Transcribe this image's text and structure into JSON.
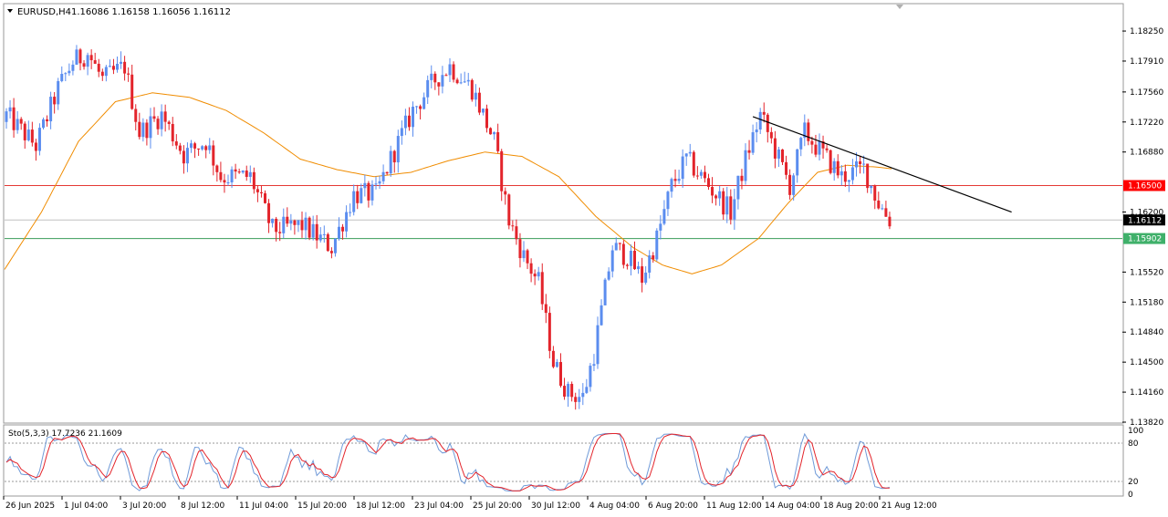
{
  "chart_data": {
    "type": "candlestick",
    "header": {
      "symbol_timeframe": "EURUSD,H4",
      "ohlc": "1.16086 1.16158 1.16056 1.16112"
    },
    "y_ticks": [
      "1.18250",
      "1.17910",
      "1.17560",
      "1.17220",
      "1.16880",
      "1.16200",
      "1.15520",
      "1.15180",
      "1.14840",
      "1.14500",
      "1.14160",
      "1.13820"
    ],
    "ylim": [
      1.1382,
      1.1855
    ],
    "x_ticks": [
      "26 Jun 2025",
      "1 Jul 04:00",
      "3 Jul 20:00",
      "8 Jul 12:00",
      "11 Jul 04:00",
      "15 Jul 20:00",
      "18 Jul 12:00",
      "23 Jul 04:00",
      "25 Jul 20:00",
      "30 Jul 12:00",
      "4 Aug 04:00",
      "6 Aug 20:00",
      "11 Aug 12:00",
      "14 Aug 04:00",
      "18 Aug 20:00",
      "21 Aug 12:00"
    ],
    "candle_count": 240,
    "close_anchors": [
      [
        0,
        1.173
      ],
      [
        8,
        1.1695
      ],
      [
        14,
        1.176
      ],
      [
        18,
        1.179
      ],
      [
        22,
        1.18
      ],
      [
        26,
        1.177
      ],
      [
        32,
        1.1785
      ],
      [
        36,
        1.171
      ],
      [
        42,
        1.173
      ],
      [
        48,
        1.1685
      ],
      [
        54,
        1.17
      ],
      [
        58,
        1.166
      ],
      [
        66,
        1.166
      ],
      [
        72,
        1.16
      ],
      [
        80,
        1.1605
      ],
      [
        88,
        1.158
      ],
      [
        94,
        1.164
      ],
      [
        100,
        1.164
      ],
      [
        104,
        1.168
      ],
      [
        110,
        1.1735
      ],
      [
        116,
        1.177
      ],
      [
        120,
        1.1785
      ],
      [
        126,
        1.176
      ],
      [
        132,
        1.17
      ],
      [
        136,
        1.161
      ],
      [
        140,
        1.157
      ],
      [
        144,
        1.154
      ],
      [
        148,
        1.145
      ],
      [
        152,
        1.1415
      ],
      [
        156,
        1.141
      ],
      [
        159,
        1.146
      ],
      [
        164,
        1.158
      ],
      [
        168,
        1.157
      ],
      [
        172,
        1.1545
      ],
      [
        176,
        1.159
      ],
      [
        180,
        1.165
      ],
      [
        184,
        1.168
      ],
      [
        190,
        1.165
      ],
      [
        196,
        1.162
      ],
      [
        200,
        1.168
      ],
      [
        204,
        1.173
      ],
      [
        208,
        1.169
      ],
      [
        212,
        1.165
      ],
      [
        216,
        1.171
      ],
      [
        222,
        1.168
      ],
      [
        226,
        1.166
      ],
      [
        232,
        1.167
      ],
      [
        236,
        1.163
      ],
      [
        239,
        1.1611
      ]
    ],
    "moving_average": {
      "color": "#f08c00",
      "anchors": [
        [
          0,
          1.1555
        ],
        [
          10,
          1.162
        ],
        [
          20,
          1.17
        ],
        [
          30,
          1.1745
        ],
        [
          40,
          1.1755
        ],
        [
          50,
          1.175
        ],
        [
          60,
          1.1735
        ],
        [
          70,
          1.171
        ],
        [
          80,
          1.168
        ],
        [
          90,
          1.1668
        ],
        [
          100,
          1.166
        ],
        [
          110,
          1.1665
        ],
        [
          120,
          1.1678
        ],
        [
          130,
          1.1688
        ],
        [
          140,
          1.1683
        ],
        [
          150,
          1.166
        ],
        [
          160,
          1.1615
        ],
        [
          170,
          1.158
        ],
        [
          178,
          1.156
        ],
        [
          186,
          1.155
        ],
        [
          194,
          1.156
        ],
        [
          204,
          1.159
        ],
        [
          212,
          1.163
        ],
        [
          220,
          1.1665
        ],
        [
          228,
          1.1673
        ],
        [
          236,
          1.1671
        ],
        [
          240,
          1.1669
        ]
      ]
    },
    "horizontal_lines": [
      {
        "price": 1.165,
        "color": "#e53935",
        "label": "1.16500",
        "badge_bg": "#ff0000",
        "badge_fg": "#ffffff"
      },
      {
        "price": 1.159,
        "color": "#3a9c5a",
        "label": "1.15902",
        "badge_bg": "#3fb06a",
        "badge_fg": "#ffffff"
      },
      {
        "price": 1.1611,
        "color": "#c0c0c0",
        "label": "1.16112",
        "badge_bg": "#000000",
        "badge_fg": "#ffffff"
      }
    ],
    "trendline": {
      "from": [
        202,
        1.1728
      ],
      "to": [
        272,
        1.162
      ],
      "color": "#000000"
    },
    "bull_color": "#5b8def",
    "bear_color": "#e3242b",
    "stochastic": {
      "label": "Sto(5,3,3) 17.7236 21.1609",
      "levels": [
        "100",
        "80",
        "20",
        "0"
      ],
      "main_color": "#6f9ad8",
      "signal_color": "#e3242b"
    }
  }
}
